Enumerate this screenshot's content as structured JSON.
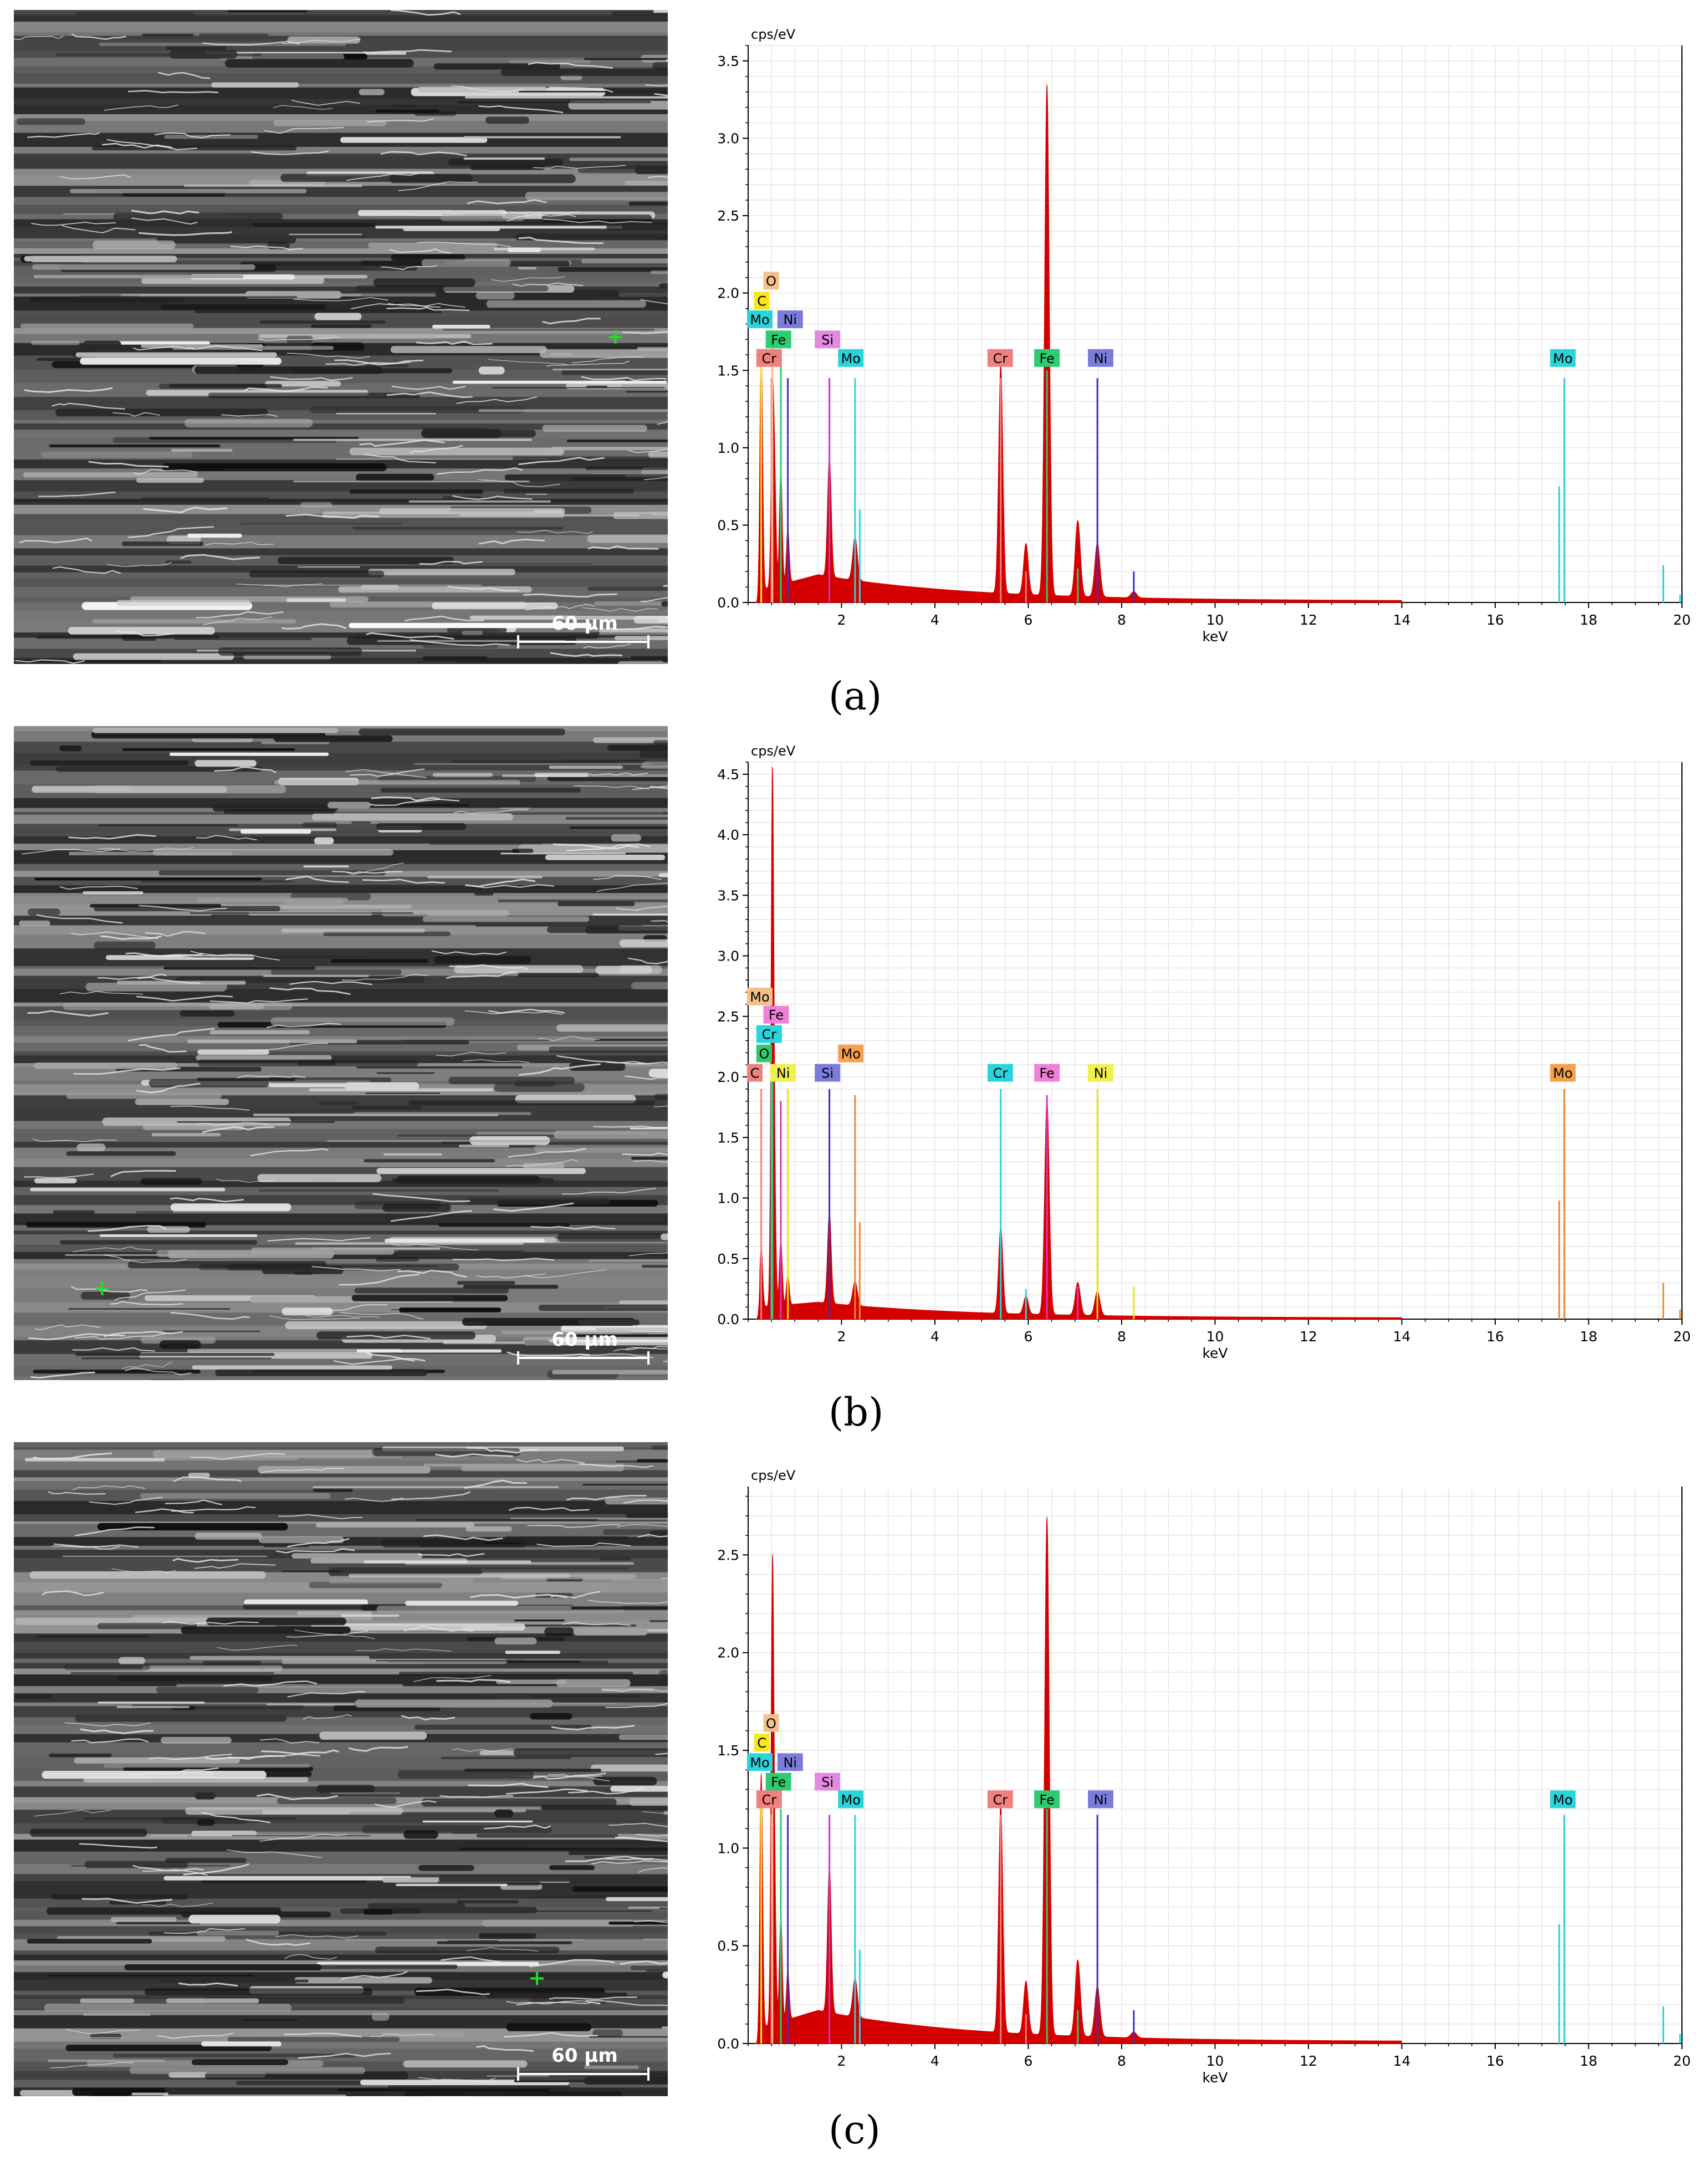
{
  "colors": {
    "spectrum_fill": "#d40000",
    "background_fill": "#c8c8c8",
    "C": "#f8e71c",
    "O": "#f5c08a",
    "Fe": "#2ecc71",
    "Cr": "#f08080",
    "Ni": "#7b7bdc",
    "Si": "#e08ae0",
    "Mo": "#2ad4dc",
    "Mo_b": "#f5a04a",
    "Ni_b": "#f0f050",
    "Fe_b": "#f080d8",
    "Cr_b": "#2ad4dc",
    "Si_b": "#7b7bdc"
  },
  "panels": [
    {
      "id": "a",
      "label": "(a)",
      "label_letter": "a",
      "scale_bar_label": "60 µm",
      "marker_color": "#22dd22",
      "marker": [
        0.92,
        0.5
      ],
      "sem_seed": 11,
      "chart_data": {
        "type": "line",
        "ylabel": "cps/eV",
        "xlabel": "keV",
        "xlim": [
          0,
          20
        ],
        "ylim": [
          0,
          3.6
        ],
        "xticks": [
          2,
          4,
          6,
          8,
          10,
          12,
          14,
          16,
          18,
          20
        ],
        "yticks": [
          0.0,
          0.5,
          1.0,
          1.5,
          2.0,
          2.5,
          3.0,
          3.5
        ],
        "ytick_labels": [
          "0.0",
          "0.5",
          "1.0",
          "1.5",
          "2.0",
          "2.5",
          "3.0",
          "3.5"
        ],
        "peaks": [
          {
            "keV": 0.28,
            "height": 1.55,
            "width": 0.03
          },
          {
            "keV": 0.52,
            "height": 1.15,
            "width": 0.03
          },
          {
            "keV": 0.57,
            "height": 0.6,
            "width": 0.03
          },
          {
            "keV": 0.7,
            "height": 0.75,
            "width": 0.03
          },
          {
            "keV": 0.85,
            "height": 0.35,
            "width": 0.03
          },
          {
            "keV": 1.74,
            "height": 0.77,
            "width": 0.04
          },
          {
            "keV": 2.29,
            "height": 0.28,
            "width": 0.05
          },
          {
            "keV": 5.41,
            "height": 1.48,
            "width": 0.045
          },
          {
            "keV": 5.95,
            "height": 0.33,
            "width": 0.05
          },
          {
            "keV": 6.4,
            "height": 3.3,
            "width": 0.05
          },
          {
            "keV": 7.06,
            "height": 0.49,
            "width": 0.055
          },
          {
            "keV": 7.48,
            "height": 0.35,
            "width": 0.055
          },
          {
            "keV": 8.26,
            "height": 0.04,
            "width": 0.06
          }
        ],
        "background": {
          "start": 0.08,
          "peak_keV": 1.5,
          "peak_height": 0.18,
          "end": 0.01
        },
        "element_lines": [
          {
            "element": "Cr",
            "color": "#f08080",
            "lines": [
              [
                0.5,
                1.45
              ],
              [
                5.41,
                1.45
              ],
              [
                5.95,
                0.2
              ]
            ]
          },
          {
            "element": "Fe",
            "color": "#2ecc71",
            "lines": [
              [
                0.7,
                1.55
              ],
              [
                6.4,
                1.5
              ],
              [
                7.06,
                0.22
              ]
            ]
          },
          {
            "element": "Ni",
            "color": "#3333cc",
            "lines": [
              [
                0.85,
                1.45
              ],
              [
                7.48,
                1.45
              ],
              [
                8.26,
                0.2
              ]
            ]
          },
          {
            "element": "Si",
            "color": "#cc33cc",
            "lines": [
              [
                1.74,
                1.45
              ]
            ]
          },
          {
            "element": "Mo",
            "color": "#2ad4dc",
            "lines": [
              [
                2.29,
                1.45
              ],
              [
                2.39,
                0.6
              ],
              [
                17.48,
                1.45
              ],
              [
                17.37,
                0.75
              ],
              [
                19.6,
                0.24
              ],
              [
                19.96,
                0.05
              ]
            ]
          },
          {
            "element": "O",
            "color": "#f5c08a",
            "lines": [
              [
                0.52,
                1.7
              ]
            ]
          },
          {
            "element": "C",
            "color": "#f8e71c",
            "lines": [
              [
                0.28,
                1.55
              ]
            ]
          }
        ],
        "labels": [
          {
            "text": "O",
            "keV": 0.35,
            "y": 2.03,
            "color": "#f5c08a"
          },
          {
            "text": "C",
            "keV": 0.15,
            "y": 1.9,
            "color": "#f8e71c"
          },
          {
            "text": "Mo",
            "keV": 0.0,
            "y": 1.78,
            "color": "#2ad4dc"
          },
          {
            "text": "Ni",
            "keV": 0.65,
            "y": 1.78,
            "color": "#7b7bdc"
          },
          {
            "text": "Fe",
            "keV": 0.4,
            "y": 1.65,
            "color": "#2ecc71"
          },
          {
            "text": "Cr",
            "keV": 0.2,
            "y": 1.53,
            "color": "#f08080"
          },
          {
            "text": "Si",
            "keV": 1.45,
            "y": 1.65,
            "color": "#e08ae0"
          },
          {
            "text": "Mo",
            "keV": 1.95,
            "y": 1.53,
            "color": "#2ad4dc"
          },
          {
            "text": "Cr",
            "keV": 5.15,
            "y": 1.53,
            "color": "#f08080"
          },
          {
            "text": "Fe",
            "keV": 6.15,
            "y": 1.53,
            "color": "#2ecc71"
          },
          {
            "text": "Ni",
            "keV": 7.3,
            "y": 1.53,
            "color": "#7b7bdc"
          },
          {
            "text": "Mo",
            "keV": 17.2,
            "y": 1.53,
            "color": "#2ad4dc"
          }
        ]
      }
    },
    {
      "id": "b",
      "label": "(b)",
      "label_letter": "b",
      "scale_bar_label": "60 µm",
      "marker_color": "#22dd22",
      "marker": [
        0.135,
        0.86
      ],
      "sem_seed": 29,
      "chart_data": {
        "type": "line",
        "ylabel": "cps/eV",
        "xlabel": "keV",
        "xlim": [
          0,
          20
        ],
        "ylim": [
          0,
          4.6
        ],
        "xticks": [
          2,
          4,
          6,
          8,
          10,
          12,
          14,
          16,
          18,
          20
        ],
        "yticks": [
          0.0,
          0.5,
          1.0,
          1.5,
          2.0,
          2.5,
          3.0,
          3.5,
          4.0,
          4.5
        ],
        "ytick_labels": [
          "0.0",
          "0.5",
          "1.0",
          "1.5",
          "2.0",
          "2.5",
          "3.0",
          "3.5",
          "4.0",
          "4.5"
        ],
        "peaks": [
          {
            "keV": 0.28,
            "height": 0.5,
            "width": 0.03
          },
          {
            "keV": 0.52,
            "height": 4.3,
            "width": 0.03
          },
          {
            "keV": 0.57,
            "height": 0.6,
            "width": 0.03
          },
          {
            "keV": 0.7,
            "height": 0.55,
            "width": 0.03
          },
          {
            "keV": 0.85,
            "height": 0.25,
            "width": 0.03
          },
          {
            "keV": 1.74,
            "height": 0.75,
            "width": 0.04
          },
          {
            "keV": 2.29,
            "height": 0.2,
            "width": 0.05
          },
          {
            "keV": 5.41,
            "height": 0.72,
            "width": 0.045
          },
          {
            "keV": 5.95,
            "height": 0.15,
            "width": 0.05
          },
          {
            "keV": 6.4,
            "height": 1.78,
            "width": 0.05
          },
          {
            "keV": 7.06,
            "height": 0.27,
            "width": 0.055
          },
          {
            "keV": 7.48,
            "height": 0.2,
            "width": 0.055
          }
        ],
        "background": {
          "start": 0.1,
          "peak_keV": 1.5,
          "peak_height": 0.14,
          "end": 0.01
        },
        "element_lines": [
          {
            "element": "Cr",
            "color": "#2ad4dc",
            "lines": [
              [
                0.5,
                2.0
              ],
              [
                5.41,
                1.9
              ],
              [
                5.95,
                0.25
              ]
            ]
          },
          {
            "element": "Fe",
            "color": "#dd33bb",
            "lines": [
              [
                0.7,
                1.8
              ],
              [
                6.4,
                1.85
              ],
              [
                7.06,
                0.27
              ]
            ]
          },
          {
            "element": "Ni",
            "color": "#e8e800",
            "lines": [
              [
                0.85,
                1.9
              ],
              [
                7.48,
                1.9
              ],
              [
                8.26,
                0.27
              ]
            ]
          },
          {
            "element": "Si",
            "color": "#3333cc",
            "lines": [
              [
                1.74,
                1.9
              ]
            ]
          },
          {
            "element": "Mo",
            "color": "#f08a30",
            "lines": [
              [
                2.29,
                1.85
              ],
              [
                2.39,
                0.8
              ],
              [
                17.48,
                1.9
              ],
              [
                17.37,
                0.98
              ],
              [
                19.6,
                0.3
              ],
              [
                19.96,
                0.08
              ]
            ]
          },
          {
            "element": "O",
            "color": "#2ecc71",
            "lines": [
              [
                0.52,
                2.0
              ]
            ]
          },
          {
            "element": "C",
            "color": "#f08080",
            "lines": [
              [
                0.28,
                1.9
              ]
            ]
          }
        ],
        "labels": [
          {
            "text": "Mo",
            "keV": 0.0,
            "y": 2.6,
            "color": "#f5c08a"
          },
          {
            "text": "Fe",
            "keV": 0.35,
            "y": 2.45,
            "color": "#f080d8"
          },
          {
            "text": "Cr",
            "keV": 0.2,
            "y": 2.29,
            "color": "#2ad4dc"
          },
          {
            "text": "O",
            "keV": 0.2,
            "y": 2.13,
            "color": "#2ecc71"
          },
          {
            "text": "C",
            "keV": 0.0,
            "y": 1.97,
            "color": "#f08080"
          },
          {
            "text": "Ni",
            "keV": 0.5,
            "y": 1.97,
            "color": "#f0f050"
          },
          {
            "text": "Si",
            "keV": 1.45,
            "y": 1.97,
            "color": "#7b7bdc"
          },
          {
            "text": "Mo",
            "keV": 1.95,
            "y": 2.13,
            "color": "#f5a04a"
          },
          {
            "text": "Cr",
            "keV": 5.15,
            "y": 1.97,
            "color": "#2ad4dc"
          },
          {
            "text": "Fe",
            "keV": 6.15,
            "y": 1.97,
            "color": "#f080d8"
          },
          {
            "text": "Ni",
            "keV": 7.3,
            "y": 1.97,
            "color": "#f0f050"
          },
          {
            "text": "Mo",
            "keV": 17.2,
            "y": 1.97,
            "color": "#f5a04a"
          }
        ]
      }
    },
    {
      "id": "c",
      "label": "(c)",
      "label_letter": "c",
      "scale_bar_label": "60 µm",
      "marker_color": "#22dd22",
      "marker": [
        0.8,
        0.82
      ],
      "sem_seed": 47,
      "chart_data": {
        "type": "line",
        "ylabel": "cps/eV",
        "xlabel": "keV",
        "xlim": [
          0,
          20
        ],
        "ylim": [
          0,
          2.85
        ],
        "xticks": [
          2,
          4,
          6,
          8,
          10,
          12,
          14,
          16,
          18,
          20
        ],
        "yticks": [
          0.0,
          0.5,
          1.0,
          1.5,
          2.0,
          2.5
        ],
        "ytick_labels": [
          "0.0",
          "0.5",
          "1.0",
          "1.5",
          "2.0",
          "2.5"
        ],
        "peaks": [
          {
            "keV": 0.28,
            "height": 1.3,
            "width": 0.03
          },
          {
            "keV": 0.52,
            "height": 2.27,
            "width": 0.03
          },
          {
            "keV": 0.57,
            "height": 0.5,
            "width": 0.03
          },
          {
            "keV": 0.7,
            "height": 0.55,
            "width": 0.03
          },
          {
            "keV": 0.85,
            "height": 0.25,
            "width": 0.03
          },
          {
            "keV": 1.74,
            "height": 0.75,
            "width": 0.04
          },
          {
            "keV": 2.29,
            "height": 0.2,
            "width": 0.05
          },
          {
            "keV": 5.41,
            "height": 1.17,
            "width": 0.045
          },
          {
            "keV": 5.95,
            "height": 0.27,
            "width": 0.05
          },
          {
            "keV": 6.4,
            "height": 2.65,
            "width": 0.05
          },
          {
            "keV": 7.06,
            "height": 0.39,
            "width": 0.055
          },
          {
            "keV": 7.48,
            "height": 0.26,
            "width": 0.055
          },
          {
            "keV": 8.26,
            "height": 0.03,
            "width": 0.06
          }
        ],
        "background": {
          "start": 0.08,
          "peak_keV": 1.5,
          "peak_height": 0.17,
          "end": 0.01
        },
        "element_lines": [
          {
            "element": "Cr",
            "color": "#f08080",
            "lines": [
              [
                0.5,
                1.17
              ],
              [
                5.41,
                1.17
              ],
              [
                5.95,
                0.15
              ]
            ]
          },
          {
            "element": "Fe",
            "color": "#2ecc71",
            "lines": [
              [
                0.7,
                1.2
              ],
              [
                6.4,
                1.2
              ],
              [
                7.06,
                0.17
              ]
            ]
          },
          {
            "element": "Ni",
            "color": "#3333cc",
            "lines": [
              [
                0.85,
                1.17
              ],
              [
                7.48,
                1.17
              ],
              [
                8.26,
                0.17
              ]
            ]
          },
          {
            "element": "Si",
            "color": "#cc33cc",
            "lines": [
              [
                1.74,
                1.17
              ]
            ]
          },
          {
            "element": "Mo",
            "color": "#2ad4dc",
            "lines": [
              [
                2.29,
                1.17
              ],
              [
                2.39,
                0.48
              ],
              [
                17.48,
                1.17
              ],
              [
                17.37,
                0.61
              ],
              [
                19.6,
                0.19
              ],
              [
                19.96,
                0.05
              ]
            ]
          },
          {
            "element": "O",
            "color": "#f5c08a",
            "lines": [
              [
                0.52,
                1.35
              ]
            ]
          },
          {
            "element": "C",
            "color": "#f8e71c",
            "lines": [
              [
                0.28,
                1.25
              ]
            ]
          }
        ],
        "labels": [
          {
            "text": "O",
            "keV": 0.35,
            "y": 1.6,
            "color": "#f5c08a"
          },
          {
            "text": "C",
            "keV": 0.15,
            "y": 1.5,
            "color": "#f8e71c"
          },
          {
            "text": "Mo",
            "keV": 0.0,
            "y": 1.4,
            "color": "#2ad4dc"
          },
          {
            "text": "Ni",
            "keV": 0.65,
            "y": 1.4,
            "color": "#7b7bdc"
          },
          {
            "text": "Fe",
            "keV": 0.4,
            "y": 1.3,
            "color": "#2ecc71"
          },
          {
            "text": "Cr",
            "keV": 0.2,
            "y": 1.21,
            "color": "#f08080"
          },
          {
            "text": "Si",
            "keV": 1.45,
            "y": 1.3,
            "color": "#e08ae0"
          },
          {
            "text": "Mo",
            "keV": 1.95,
            "y": 1.21,
            "color": "#2ad4dc"
          },
          {
            "text": "Cr",
            "keV": 5.15,
            "y": 1.21,
            "color": "#f08080"
          },
          {
            "text": "Fe",
            "keV": 6.15,
            "y": 1.21,
            "color": "#2ecc71"
          },
          {
            "text": "Ni",
            "keV": 7.3,
            "y": 1.21,
            "color": "#7b7bdc"
          },
          {
            "text": "Mo",
            "keV": 17.2,
            "y": 1.21,
            "color": "#2ad4dc"
          }
        ]
      }
    }
  ]
}
